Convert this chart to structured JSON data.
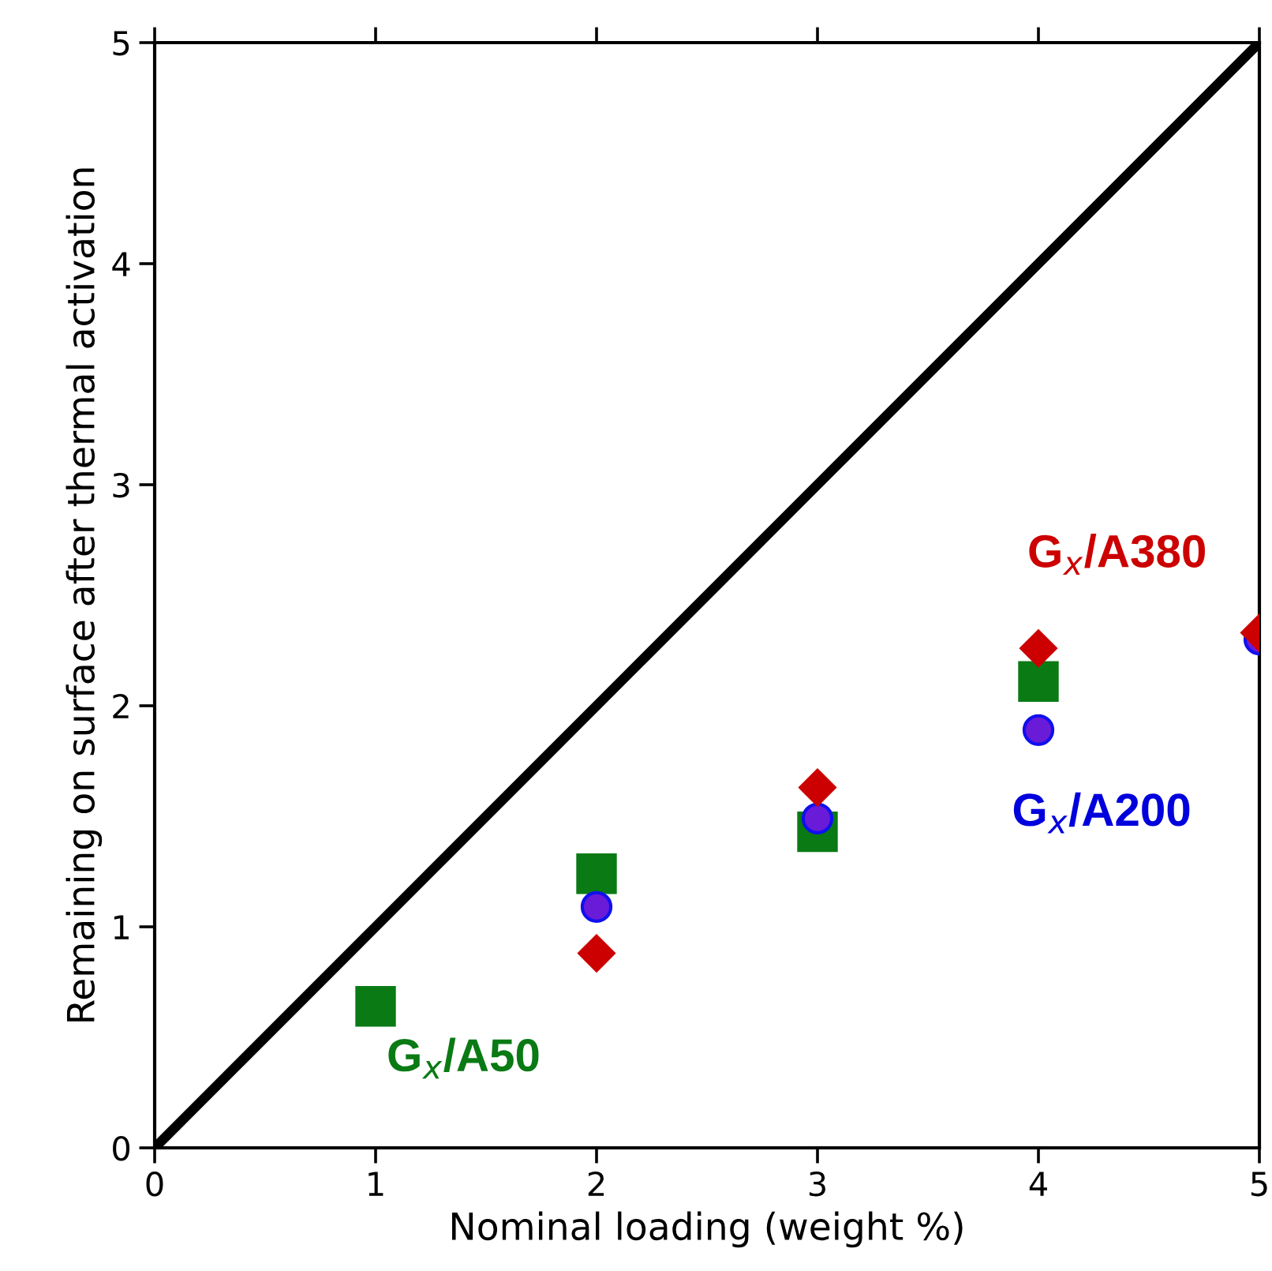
{
  "chart_data": {
    "type": "scatter",
    "xlabel": "Nominal loading (weight %)",
    "ylabel": "Remaining on surface after thermal activation",
    "xlim": [
      0,
      5
    ],
    "ylim": [
      0,
      5
    ],
    "xticks": [
      0,
      1,
      2,
      3,
      4,
      5
    ],
    "yticks": [
      0,
      1,
      2,
      3,
      4,
      5
    ],
    "grid": false,
    "legend": false,
    "series": [
      {
        "type": "line",
        "x": [
          0,
          5
        ],
        "values": [
          0,
          5
        ],
        "color": "#000000",
        "marker": "none",
        "line_style": "solid"
      },
      {
        "name": "G$_{x}$/A50",
        "color": "#0a7a14",
        "marker": "square",
        "x": [
          1,
          2,
          3,
          4
        ],
        "values": [
          0.64,
          1.24,
          1.43,
          2.11
        ]
      },
      {
        "name": "G$_{x}$/A200",
        "color": "#6a1bd8",
        "marker": "circle",
        "x": [
          2,
          3,
          4,
          5
        ],
        "values": [
          1.09,
          1.49,
          1.89,
          2.3
        ]
      },
      {
        "name": "G$_{x}$/A380",
        "color": "#cc0000",
        "marker": "diamond",
        "x": [
          2,
          3,
          4,
          5
        ],
        "values": [
          0.88,
          1.63,
          2.26,
          2.33
        ]
      }
    ]
  }
}
